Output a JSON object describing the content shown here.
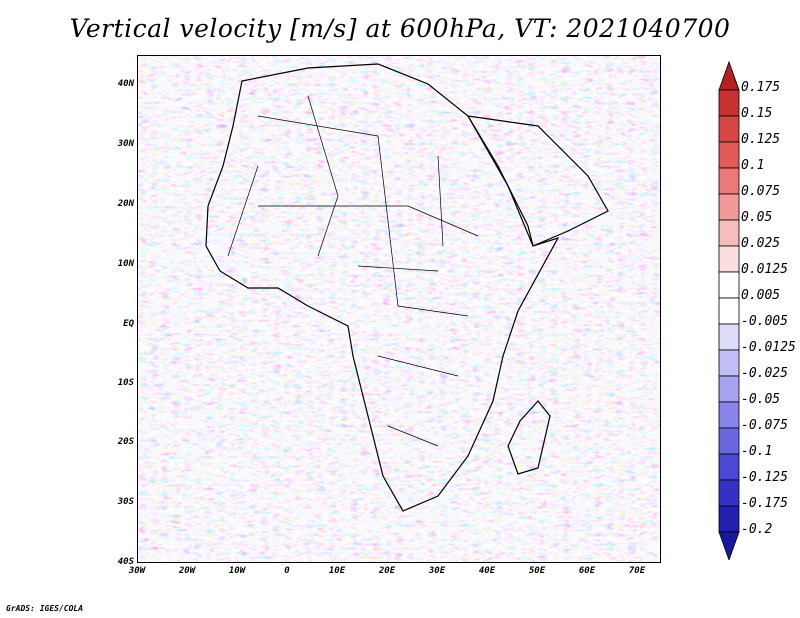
{
  "title": "Vertical velocity [m/s] at 600hPa, VT: 2021040700",
  "credit": "GrADS: IGES/COLA",
  "map": {
    "lat_labels": [
      "40N",
      "30N",
      "20N",
      "10N",
      "EQ",
      "10S",
      "20S",
      "30S",
      "40S"
    ],
    "lon_labels": [
      "30W",
      "20W",
      "10W",
      "0",
      "10E",
      "20E",
      "30E",
      "40E",
      "50E",
      "60E",
      "70E"
    ]
  },
  "colorbar": {
    "labels": [
      "0.175",
      "0.15",
      "0.125",
      "0.1",
      "0.075",
      "0.05",
      "0.025",
      "0.0125",
      "0.005",
      "-0.005",
      "-0.0125",
      "-0.025",
      "-0.05",
      "-0.075",
      "-0.1",
      "-0.125",
      "-0.175",
      "-0.2"
    ],
    "colors": [
      "#b52020",
      "#c83232",
      "#d74545",
      "#e35a5a",
      "#ec7878",
      "#f29a9a",
      "#f7bcbc",
      "#fbdede",
      "#ffffff",
      "#ffffff",
      "#dedcfb",
      "#c2bff6",
      "#a5a2f0",
      "#8985ea",
      "#6b66e2",
      "#4d47d8",
      "#3530c6",
      "#2220b0",
      "#1a18a0"
    ]
  }
}
